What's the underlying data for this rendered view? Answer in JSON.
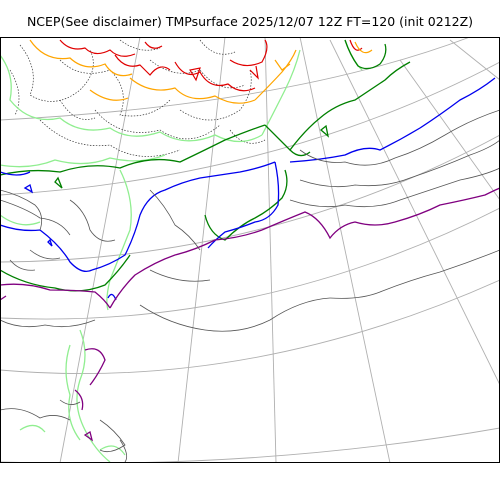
{
  "title": "NCEP(See disclaimer) TMPsurface 2025/12/07 12Z FT=120 (init 0212Z)",
  "colors": {
    "graticule": "#b0b0b0",
    "coast_gray": "#555555",
    "contour_dark_gray": "#333333",
    "red": "#e00000",
    "orange": "#ffa500",
    "light_green": "#90ee90",
    "green": "#008000",
    "blue": "#0000ee",
    "purple": "#800080",
    "frame": "#000000"
  }
}
